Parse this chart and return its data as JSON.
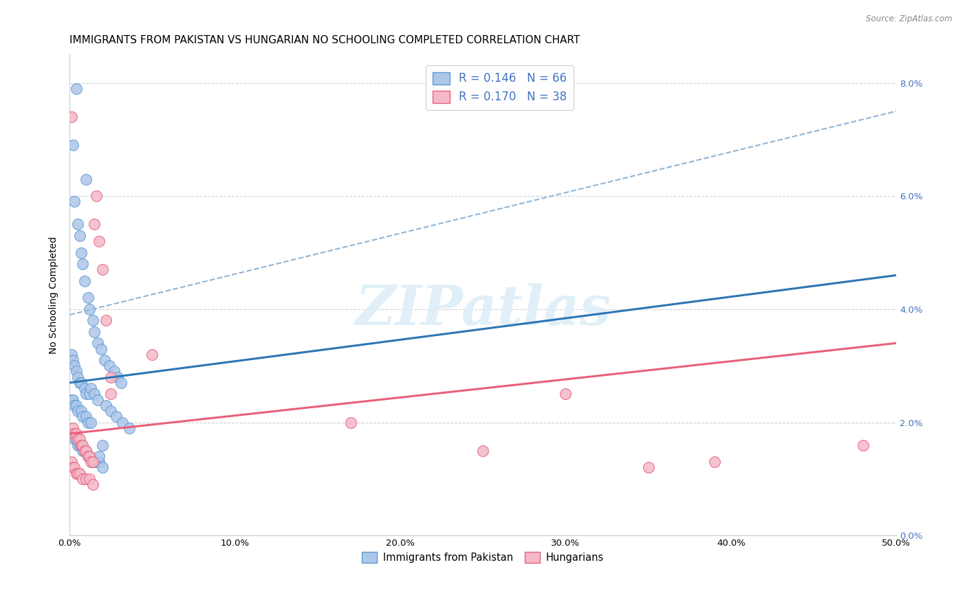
{
  "title": "IMMIGRANTS FROM PAKISTAN VS HUNGARIAN NO SCHOOLING COMPLETED CORRELATION CHART",
  "source": "Source: ZipAtlas.com",
  "ylabel": "No Schooling Completed",
  "xlabel_ticks": [
    "0.0%",
    "10.0%",
    "20.0%",
    "30.0%",
    "40.0%",
    "50.0%"
  ],
  "ylabel_ticks_right": [
    "0.0%",
    "2.0%",
    "4.0%",
    "6.0%",
    "8.0%"
  ],
  "xlim": [
    0.0,
    0.5
  ],
  "ylim": [
    0.0,
    0.085
  ],
  "legend_top_label1": "R = 0.146   N = 66",
  "legend_top_label2": "R = 0.170   N = 38",
  "legend_bottom": [
    "Immigrants from Pakistan",
    "Hungarians"
  ],
  "pakistan_color": "#aec6e8",
  "hungarian_color": "#f4b8c8",
  "pakistan_edge": "#5b9bd5",
  "hungarian_edge": "#e8607a",
  "blue_line_color": "#2e75b6",
  "pink_line_color": "#e8607a",
  "dashed_line_color": "#92b4d4",
  "background_color": "#ffffff",
  "grid_color": "#d0d0d0",
  "watermark_text": "ZIPatlas",
  "watermark_color": "#ddeef8",
  "title_fontsize": 11,
  "axis_label_fontsize": 10,
  "tick_fontsize": 9.5,
  "legend_fontsize": 12,
  "tick_label_color_right": "#4472c4",
  "blue_line_x": [
    0.0,
    0.5
  ],
  "blue_line_y": [
    0.027,
    0.046
  ],
  "pink_line_x": [
    0.0,
    0.5
  ],
  "pink_line_y": [
    0.018,
    0.034
  ],
  "dashed_line_x": [
    0.0,
    0.5
  ],
  "dashed_line_y": [
    0.039,
    0.075
  ],
  "pak_x": [
    0.004,
    0.002,
    0.01,
    0.003,
    0.005,
    0.006,
    0.007,
    0.008,
    0.009,
    0.011,
    0.012,
    0.014,
    0.015,
    0.017,
    0.019,
    0.021,
    0.024,
    0.027,
    0.029,
    0.031,
    0.001,
    0.002,
    0.003,
    0.004,
    0.005,
    0.006,
    0.007,
    0.009,
    0.01,
    0.012,
    0.001,
    0.002,
    0.003,
    0.004,
    0.005,
    0.007,
    0.008,
    0.01,
    0.011,
    0.013,
    0.001,
    0.002,
    0.003,
    0.004,
    0.005,
    0.006,
    0.007,
    0.008,
    0.009,
    0.01,
    0.011,
    0.012,
    0.014,
    0.016,
    0.018,
    0.02,
    0.013,
    0.015,
    0.017,
    0.022,
    0.025,
    0.028,
    0.032,
    0.036,
    0.02,
    0.018
  ],
  "pak_y": [
    0.079,
    0.069,
    0.063,
    0.059,
    0.055,
    0.053,
    0.05,
    0.048,
    0.045,
    0.042,
    0.04,
    0.038,
    0.036,
    0.034,
    0.033,
    0.031,
    0.03,
    0.029,
    0.028,
    0.027,
    0.032,
    0.031,
    0.03,
    0.029,
    0.028,
    0.027,
    0.027,
    0.026,
    0.025,
    0.025,
    0.024,
    0.024,
    0.023,
    0.023,
    0.022,
    0.022,
    0.021,
    0.021,
    0.02,
    0.02,
    0.018,
    0.018,
    0.017,
    0.017,
    0.016,
    0.016,
    0.016,
    0.015,
    0.015,
    0.015,
    0.014,
    0.014,
    0.013,
    0.013,
    0.013,
    0.012,
    0.026,
    0.025,
    0.024,
    0.023,
    0.022,
    0.021,
    0.02,
    0.019,
    0.016,
    0.014
  ],
  "hun_x": [
    0.001,
    0.002,
    0.003,
    0.004,
    0.005,
    0.006,
    0.007,
    0.008,
    0.009,
    0.01,
    0.011,
    0.012,
    0.013,
    0.014,
    0.015,
    0.016,
    0.018,
    0.02,
    0.022,
    0.025,
    0.001,
    0.002,
    0.003,
    0.004,
    0.005,
    0.006,
    0.008,
    0.01,
    0.012,
    0.014,
    0.025,
    0.05,
    0.17,
    0.25,
    0.3,
    0.35,
    0.39,
    0.48
  ],
  "hun_y": [
    0.074,
    0.019,
    0.018,
    0.018,
    0.017,
    0.017,
    0.016,
    0.016,
    0.015,
    0.015,
    0.014,
    0.014,
    0.013,
    0.013,
    0.055,
    0.06,
    0.052,
    0.047,
    0.038,
    0.025,
    0.013,
    0.012,
    0.012,
    0.011,
    0.011,
    0.011,
    0.01,
    0.01,
    0.01,
    0.009,
    0.028,
    0.032,
    0.02,
    0.015,
    0.025,
    0.012,
    0.013,
    0.016
  ]
}
